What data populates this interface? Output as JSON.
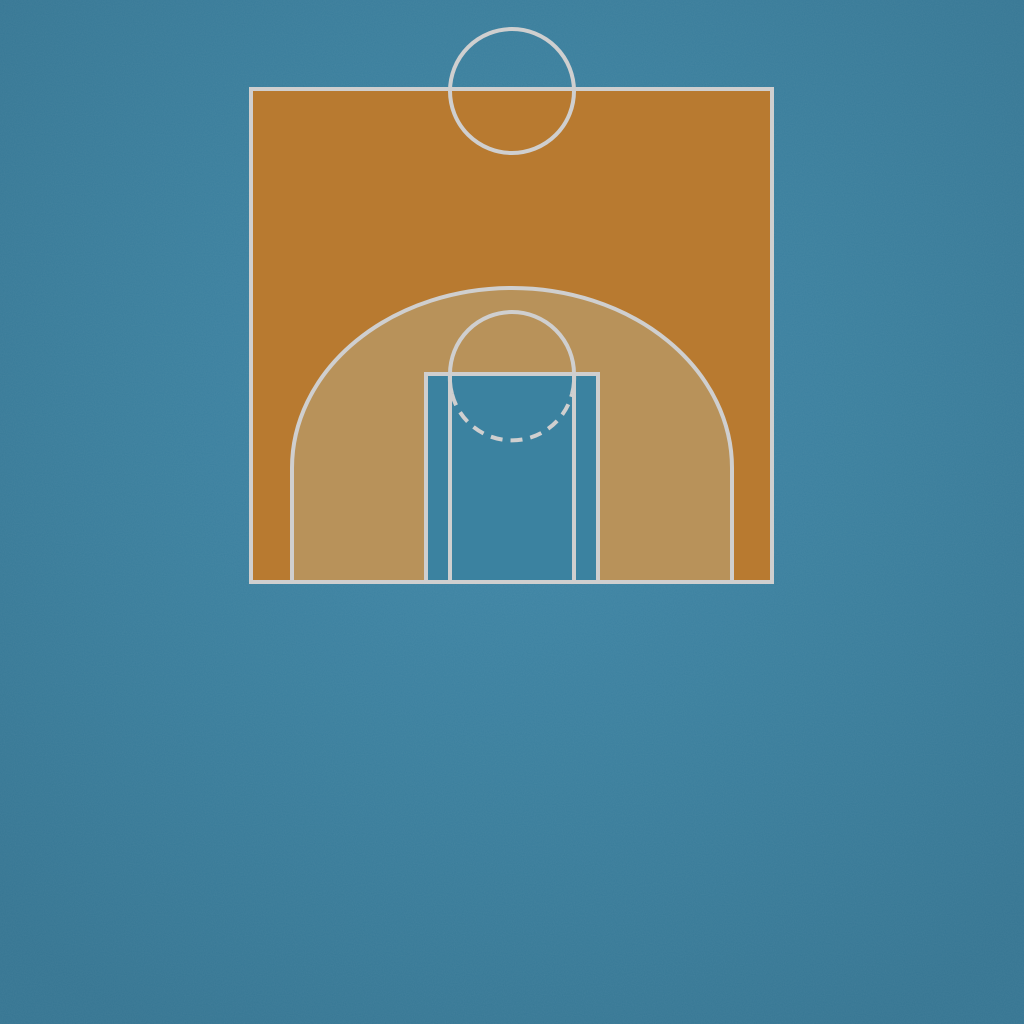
{
  "scene": {
    "kind": "basketball-half-court",
    "view": "top-down"
  },
  "colors": {
    "surround": "#3a7f9e",
    "surround_light": "#4b93b3",
    "court_floor": "#b87a30",
    "three_point_zone": "#b8925a",
    "key_paint": "#3b82a0",
    "lines": "#cfcfcf"
  },
  "elements": {
    "center_circle": {
      "style": "solid"
    },
    "three_point_line": {
      "style": "solid"
    },
    "key": {
      "style": "outlined",
      "inner_lane_lines": true
    },
    "free_throw_circle": {
      "top_half": "solid",
      "bottom_half": "dashed"
    }
  }
}
